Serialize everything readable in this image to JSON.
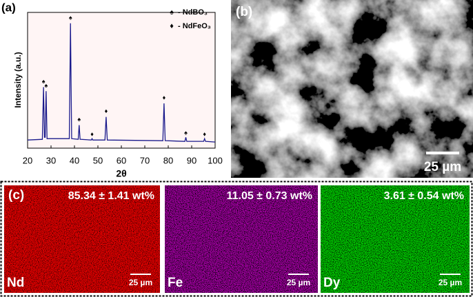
{
  "chart_data": {
    "type": "line",
    "panel_label": "(a)",
    "xlabel": "2θ",
    "ylabel": "Intensity (a.u.)",
    "x": [
      20,
      26.3,
      26.8,
      27.2,
      27.5,
      27.9,
      28.3,
      37.8,
      38.3,
      38.8,
      41.6,
      42,
      42.4,
      47.2,
      47.5,
      47.8,
      53,
      53.5,
      54,
      77.7,
      78.2,
      78.7,
      87.1,
      87.5,
      87.9,
      95.1,
      95.5,
      95.9,
      100
    ],
    "values": [
      6,
      6.5,
      45,
      8,
      8,
      42,
      7,
      7,
      92,
      7,
      6.5,
      17,
      6.5,
      6,
      7,
      6,
      6,
      23,
      6,
      5.5,
      33,
      5.5,
      5,
      8,
      5,
      5,
      7,
      5,
      4.5
    ],
    "color": "#1a1a8c",
    "background": "#fff5f5",
    "xlim": [
      20,
      100
    ],
    "xticks": [
      20,
      30,
      40,
      50,
      60,
      70,
      80,
      90,
      100
    ],
    "ylim": [
      0,
      100
    ],
    "markers": [
      {
        "name": "- NdBO₃",
        "symbol": "♠",
        "x": [
          26.8,
          27.9,
          38.3,
          42,
          87.5
        ],
        "values": [
          49,
          46,
          96,
          21,
          11
        ]
      },
      {
        "name": "- NdFeO₃",
        "symbol": "♦",
        "x": [
          47.5,
          53.5,
          78.2,
          95.5
        ],
        "values": [
          10,
          27,
          37,
          10
        ]
      }
    ]
  },
  "panel_b": {
    "label": "(b)",
    "scale": "25 µm"
  },
  "panel_c": {
    "label": "(c)",
    "maps": [
      {
        "element": "Nd",
        "composition": "85.34 ± 1.41 wt%",
        "scale": "25 µm"
      },
      {
        "element": "Fe",
        "composition": "11.05 ± 0.73 wt%",
        "scale": "25 µm"
      },
      {
        "element": "Dy",
        "composition": "3.61 ± 0.54 wt%",
        "scale": "25 µm"
      }
    ]
  }
}
